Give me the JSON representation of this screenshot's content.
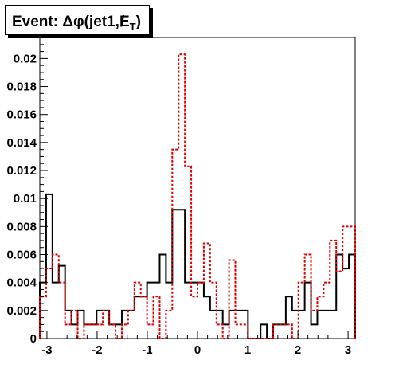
{
  "chart_data": {
    "type": "step",
    "title": "Event: Δφ(jet1,E̸T)",
    "title_main": "Event: Δφ(jet1,",
    "title_met": "E",
    "title_sub": "T",
    "title_close": ")",
    "xlabel": "",
    "ylabel": "",
    "xlim": [
      -3.1416,
      3.1416
    ],
    "ylim": [
      0,
      0.0215
    ],
    "xticks": [
      -3,
      -2,
      -1,
      0,
      1,
      2,
      3
    ],
    "xtick_labels": [
      "-3",
      "-2",
      "-1",
      "0",
      "1",
      "2",
      "3"
    ],
    "yticks": [
      0,
      0.002,
      0.004,
      0.006,
      0.008,
      0.01,
      0.012,
      0.014,
      0.016,
      0.018,
      0.02
    ],
    "ytick_labels": [
      "0",
      "0.002",
      "0.004",
      "0.006",
      "0.008",
      "0.01",
      "0.012",
      "0.014",
      "0.016",
      "0.018",
      "0.02"
    ],
    "bins": 50,
    "grid": false,
    "legend": "none",
    "series": [
      {
        "style": "solid",
        "color": "#000000",
        "values": [
          0.004,
          0.0103,
          0.004,
          0.0052,
          0.002,
          0.001,
          0.002,
          0.001,
          0.001,
          0.002,
          0.002,
          0.001,
          0.001,
          0.002,
          0.002,
          0.003,
          0.003,
          0.004,
          0.004,
          0.006,
          0.004,
          0.0092,
          0.0092,
          0.004,
          0.004,
          0.004,
          0.003,
          0.002,
          0.002,
          0.001,
          0.002,
          0.002,
          0.002,
          0.0,
          0.0,
          0.001,
          0.0,
          0.001,
          0.001,
          0.003,
          0.002,
          0.002,
          0.004,
          0.001,
          0.002,
          0.002,
          0.002,
          0.006,
          0.005,
          0.006
        ]
      },
      {
        "style": "dashed",
        "color": "#dd0000",
        "values": [
          0.003,
          0.005,
          0.006,
          0.004,
          0.001,
          0.002,
          0.0,
          0.001,
          0.001,
          0.001,
          0.002,
          0.001,
          0.0,
          0.001,
          0.002,
          0.004,
          0.003,
          0.001,
          0.003,
          0.0,
          0.002,
          0.0135,
          0.0203,
          0.0123,
          0.003,
          0.004,
          0.0068,
          0.004,
          0.001,
          0.0,
          0.0056,
          0.001,
          0.001,
          0.0,
          0.0,
          0.0,
          0.0,
          0.001,
          0.001,
          0.001,
          0.0,
          0.004,
          0.006,
          0.002,
          0.003,
          0.004,
          0.007,
          0.0048,
          0.008,
          0.008
        ]
      }
    ]
  }
}
